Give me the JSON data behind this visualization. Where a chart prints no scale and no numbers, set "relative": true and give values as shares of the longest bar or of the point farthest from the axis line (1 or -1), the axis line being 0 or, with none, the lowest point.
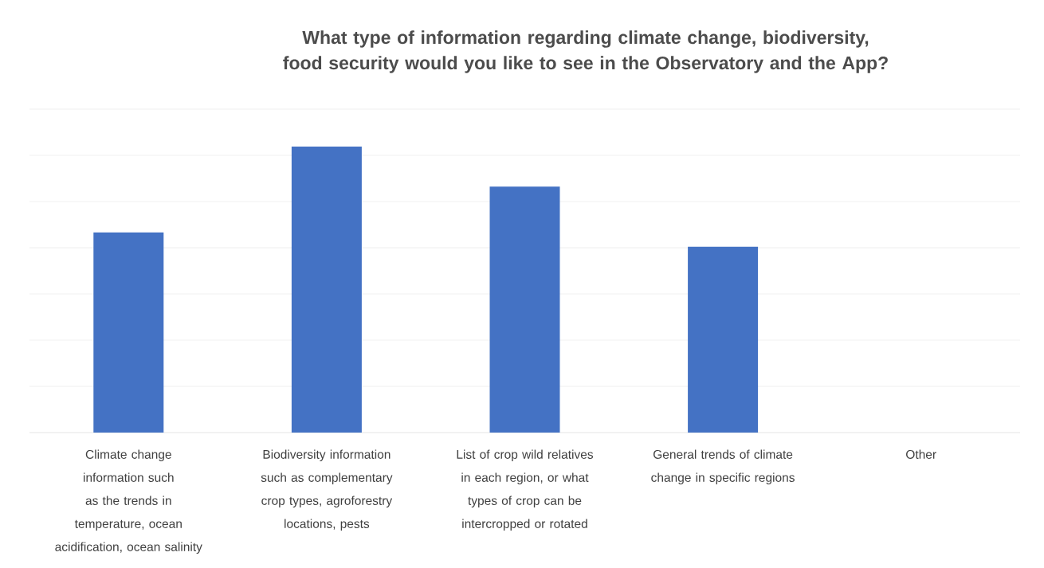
{
  "chart_data": {
    "type": "bar",
    "title": "What type of information regarding climate change, biodiversity, food security would you like to see in the Observatory and the App?",
    "categories": [
      "Climate change information such as the trends in temperature, ocean acidification, ocean salinity",
      "Biodiversity information such as complementary crop types, agroforestry locations, pests",
      "List of crop wild relatives in each region, or what types of crop can be intercropped or rotated",
      "General trends of climate change in specific regions",
      "Other"
    ],
    "values": [
      0.7,
      1,
      0.86,
      0.65,
      0
    ],
    "relative": true,
    "color": "#4472c4",
    "grid": "y"
  }
}
